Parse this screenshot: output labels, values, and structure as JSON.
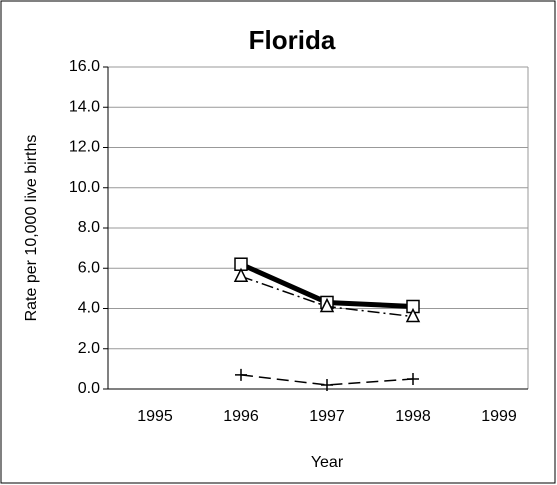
{
  "chart_data": {
    "type": "line",
    "title": "Florida",
    "x_label": "Year",
    "y_label": "Rate per 10,000 live births",
    "categories": [
      "1995",
      "1996",
      "1997",
      "1998",
      "1999"
    ],
    "series": [
      {
        "color": "#000000",
        "marker": "square",
        "dash": "solid",
        "width": 5,
        "values": [
          null,
          6.2,
          4.3,
          4.1,
          null
        ]
      },
      {
        "color": "#000000",
        "marker": "triangle",
        "dash": "dashdot",
        "width": 1.5,
        "values": [
          null,
          5.6,
          4.1,
          3.6,
          null
        ]
      },
      {
        "color": "#000000",
        "marker": "plus",
        "dash": "dashed",
        "width": 1.5,
        "values": [
          null,
          0.7,
          0.2,
          0.5,
          null
        ]
      }
    ],
    "ylim": [
      0,
      16
    ],
    "yticks": [
      {
        "value": 0,
        "label": "0.0"
      },
      {
        "value": 2,
        "label": "2.0"
      },
      {
        "value": 4,
        "label": "4.0"
      },
      {
        "value": 6,
        "label": "6.0"
      },
      {
        "value": 8,
        "label": "8.0"
      },
      {
        "value": 10,
        "label": "10.0"
      },
      {
        "value": 12,
        "label": "12.0"
      },
      {
        "value": 14,
        "label": "14.0"
      },
      {
        "value": 16,
        "label": "16.0"
      }
    ],
    "grid": true
  }
}
